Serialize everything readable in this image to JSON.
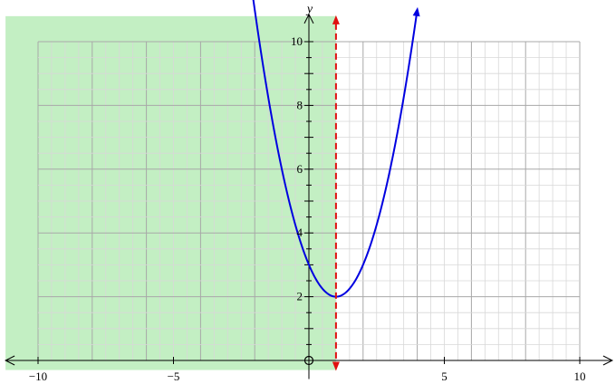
{
  "chart_data": {
    "type": "line",
    "title": "",
    "xlabel": "",
    "ylabel": "y",
    "origin_label": "O",
    "xlim": [
      -11.2,
      11.2
    ],
    "ylim": [
      -0.3,
      10.8
    ],
    "grid": {
      "visible": true,
      "x_range": [
        -10,
        10
      ],
      "y_range": [
        0,
        10
      ],
      "minor_step": 0.5,
      "major_step": 2
    },
    "x_ticks": [
      {
        "value": -10,
        "label": "−10"
      },
      {
        "value": -5,
        "label": "−5"
      },
      {
        "value": 5,
        "label": "5"
      },
      {
        "value": 10,
        "label": "10"
      }
    ],
    "y_ticks": [
      {
        "value": 2,
        "label": "2"
      },
      {
        "value": 4,
        "label": "4"
      },
      {
        "value": 6,
        "label": "6"
      },
      {
        "value": 8,
        "label": "8"
      },
      {
        "value": 10,
        "label": "10"
      }
    ],
    "series": [
      {
        "kind": "curve",
        "equation": "y = (x - 1)^2 + 2",
        "color": "#0000e0",
        "x": [
          -2.1,
          -1.5,
          -1,
          -0.5,
          0,
          0.5,
          1,
          1.5,
          2,
          2.5,
          3,
          3.5,
          4
        ],
        "y": [
          11.61,
          8.25,
          6.0,
          4.25,
          3.0,
          2.25,
          2.0,
          2.25,
          3.0,
          4.25,
          6.0,
          8.25,
          11.0
        ]
      },
      {
        "kind": "vertical-line",
        "x": 1,
        "style": "dashed",
        "color": "#e01010"
      }
    ],
    "shaded_region": {
      "x_from": -11.2,
      "x_to": 1,
      "color": "#c3efc3"
    },
    "colors": {
      "grid_minor": "#d8d8d8",
      "grid_major": "#a8a8a8",
      "axis": "#000000"
    }
  }
}
